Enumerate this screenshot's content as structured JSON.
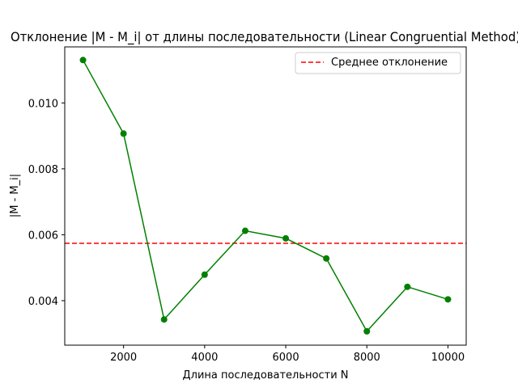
{
  "chart_data": {
    "type": "line",
    "title": "Отклонение |M - M_i| от длины последовательности (Linear Congruential Method)",
    "xlabel": "Длина последовательности N",
    "ylabel": "|M - M_i|",
    "xlim": [
      550,
      10450
    ],
    "ylim": [
      0.00265,
      0.0117
    ],
    "xticks": [
      2000,
      4000,
      6000,
      8000,
      10000
    ],
    "xtick_labels": [
      "2000",
      "4000",
      "6000",
      "8000",
      "10000"
    ],
    "yticks": [
      0.004,
      0.006,
      0.008,
      0.01
    ],
    "ytick_labels": [
      "0.004",
      "0.006",
      "0.008",
      "0.010"
    ],
    "grid": false,
    "legend_position": "top-right",
    "series": [
      {
        "type": "line",
        "color": "#008000",
        "marker": "circle",
        "x": [
          1000,
          2000,
          3000,
          4000,
          5000,
          6000,
          7000,
          8000,
          9000,
          10000
        ],
        "y": [
          0.0113,
          0.00907,
          0.00343,
          0.00479,
          0.00612,
          0.00589,
          0.00528,
          0.00307,
          0.00442,
          0.00404
        ]
      }
    ],
    "hlines": [
      {
        "name": "Среднее отклонение",
        "y": 0.00574,
        "color": "#ff0000",
        "style": "dashed"
      }
    ]
  }
}
